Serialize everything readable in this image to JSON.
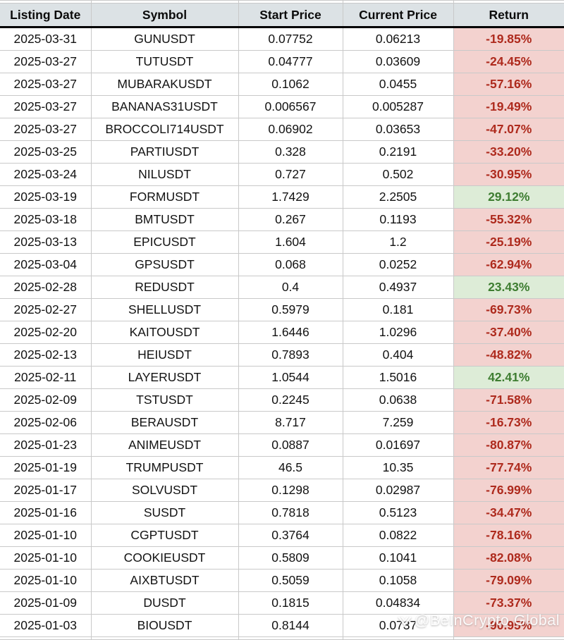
{
  "table": {
    "columns": [
      "Listing Date",
      "Symbol",
      "Start Price",
      "Current Price",
      "Return"
    ],
    "rows": [
      {
        "date": "2025-03-31",
        "symbol": "GUNUSDT",
        "start": "0.07752",
        "current": "0.06213",
        "ret": "-19.85%"
      },
      {
        "date": "2025-03-27",
        "symbol": "TUTUSDT",
        "start": "0.04777",
        "current": "0.03609",
        "ret": "-24.45%"
      },
      {
        "date": "2025-03-27",
        "symbol": "MUBARAKUSDT",
        "start": "0.1062",
        "current": "0.0455",
        "ret": "-57.16%"
      },
      {
        "date": "2025-03-27",
        "symbol": "BANANAS31USDT",
        "start": "0.006567",
        "current": "0.005287",
        "ret": "-19.49%"
      },
      {
        "date": "2025-03-27",
        "symbol": "BROCCOLI714USDT",
        "start": "0.06902",
        "current": "0.03653",
        "ret": "-47.07%"
      },
      {
        "date": "2025-03-25",
        "symbol": "PARTIUSDT",
        "start": "0.328",
        "current": "0.2191",
        "ret": "-33.20%"
      },
      {
        "date": "2025-03-24",
        "symbol": "NILUSDT",
        "start": "0.727",
        "current": "0.502",
        "ret": "-30.95%"
      },
      {
        "date": "2025-03-19",
        "symbol": "FORMUSDT",
        "start": "1.7429",
        "current": "2.2505",
        "ret": "29.12%"
      },
      {
        "date": "2025-03-18",
        "symbol": "BMTUSDT",
        "start": "0.267",
        "current": "0.1193",
        "ret": "-55.32%"
      },
      {
        "date": "2025-03-13",
        "symbol": "EPICUSDT",
        "start": "1.604",
        "current": "1.2",
        "ret": "-25.19%"
      },
      {
        "date": "2025-03-04",
        "symbol": "GPSUSDT",
        "start": "0.068",
        "current": "0.0252",
        "ret": "-62.94%"
      },
      {
        "date": "2025-02-28",
        "symbol": "REDUSDT",
        "start": "0.4",
        "current": "0.4937",
        "ret": "23.43%"
      },
      {
        "date": "2025-02-27",
        "symbol": "SHELLUSDT",
        "start": "0.5979",
        "current": "0.181",
        "ret": "-69.73%"
      },
      {
        "date": "2025-02-20",
        "symbol": "KAITOUSDT",
        "start": "1.6446",
        "current": "1.0296",
        "ret": "-37.40%"
      },
      {
        "date": "2025-02-13",
        "symbol": "HEIUSDT",
        "start": "0.7893",
        "current": "0.404",
        "ret": "-48.82%"
      },
      {
        "date": "2025-02-11",
        "symbol": "LAYERUSDT",
        "start": "1.0544",
        "current": "1.5016",
        "ret": "42.41%"
      },
      {
        "date": "2025-02-09",
        "symbol": "TSTUSDT",
        "start": "0.2245",
        "current": "0.0638",
        "ret": "-71.58%"
      },
      {
        "date": "2025-02-06",
        "symbol": "BERAUSDT",
        "start": "8.717",
        "current": "7.259",
        "ret": "-16.73%"
      },
      {
        "date": "2025-01-23",
        "symbol": "ANIMEUSDT",
        "start": "0.0887",
        "current": "0.01697",
        "ret": "-80.87%"
      },
      {
        "date": "2025-01-19",
        "symbol": "TRUMPUSDT",
        "start": "46.5",
        "current": "10.35",
        "ret": "-77.74%"
      },
      {
        "date": "2025-01-17",
        "symbol": "SOLVUSDT",
        "start": "0.1298",
        "current": "0.02987",
        "ret": "-76.99%"
      },
      {
        "date": "2025-01-16",
        "symbol": "SUSDT",
        "start": "0.7818",
        "current": "0.5123",
        "ret": "-34.47%"
      },
      {
        "date": "2025-01-10",
        "symbol": "CGPTUSDT",
        "start": "0.3764",
        "current": "0.0822",
        "ret": "-78.16%"
      },
      {
        "date": "2025-01-10",
        "symbol": "COOKIEUSDT",
        "start": "0.5809",
        "current": "0.1041",
        "ret": "-82.08%"
      },
      {
        "date": "2025-01-10",
        "symbol": "AIXBTUSDT",
        "start": "0.5059",
        "current": "0.1058",
        "ret": "-79.09%"
      },
      {
        "date": "2025-01-09",
        "symbol": "DUSDT",
        "start": "0.1815",
        "current": "0.04834",
        "ret": "-73.37%"
      },
      {
        "date": "2025-01-03",
        "symbol": "BIOUSDT",
        "start": "0.8144",
        "current": "0.0737",
        "ret": "-90.95%"
      }
    ]
  },
  "watermark": {
    "text": "@BeInCrypto Global"
  },
  "colors": {
    "header_bg": "#dce2e5",
    "grid_line": "#c9c9c9",
    "negative_bg": "#f3d2cf",
    "negative_text": "#ae2a1d",
    "positive_bg": "#ddecd7",
    "positive_text": "#3e7d31"
  }
}
